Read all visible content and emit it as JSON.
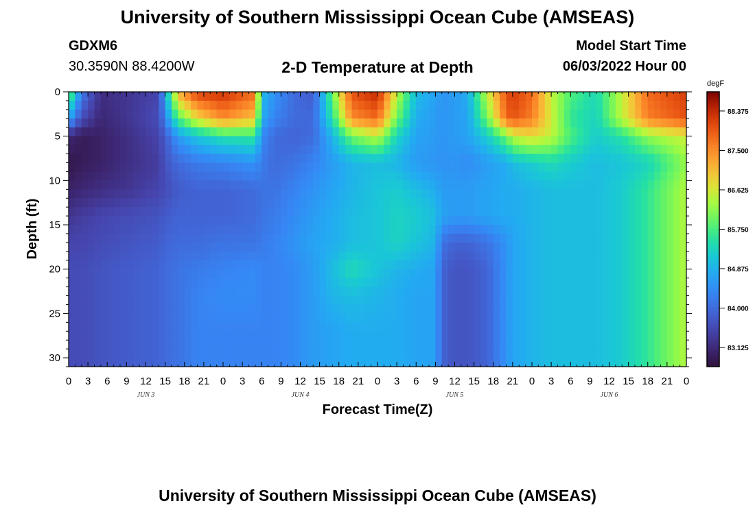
{
  "header": {
    "title": "University of Southern Mississippi Ocean Cube (AMSEAS)",
    "station": "GDXM6",
    "coords": "30.3590N  88.4200W",
    "subtitle": "2-D Temperature at Depth",
    "model_start_label": "Model Start Time",
    "model_start_value": "06/03/2022 Hour 00"
  },
  "footer": {
    "title": "University of Southern Mississippi Ocean Cube (AMSEAS)"
  },
  "chart_data": {
    "type": "heatmap",
    "title": "2-D Temperature at Depth",
    "xlabel": "Forecast Time(Z)",
    "ylabel": "Depth (ft)",
    "x_unit": "hours from model start",
    "x_range": [
      0,
      96
    ],
    "x_tick_labels": [
      "0",
      "3",
      "6",
      "9",
      "12",
      "15",
      "18",
      "21",
      "0",
      "3",
      "6",
      "9",
      "12",
      "15",
      "18",
      "21",
      "0",
      "3",
      "6",
      "9",
      "12",
      "15",
      "18",
      "21",
      "0",
      "3",
      "6",
      "9",
      "12",
      "15",
      "18",
      "21",
      "0"
    ],
    "day_labels": [
      {
        "label": "JUN 3",
        "hour": 12
      },
      {
        "label": "JUN 4",
        "hour": 36
      },
      {
        "label": "JUN 5",
        "hour": 60
      },
      {
        "label": "JUN 6",
        "hour": 84
      }
    ],
    "y_ticks": [
      0,
      5,
      10,
      15,
      20,
      25,
      30
    ],
    "y_range": [
      0,
      31
    ],
    "y_inverted": true,
    "colorbar": {
      "unit": "degF",
      "range": [
        82.7,
        88.8
      ],
      "ticks": [
        83.125,
        84.0,
        84.875,
        85.75,
        86.625,
        87.5,
        88.375
      ],
      "tick_labels": [
        "83.125",
        "84.000",
        "84.875",
        "85.750",
        "86.625",
        "87.500",
        "88.375"
      ]
    },
    "depths": [
      0,
      3,
      5,
      8,
      11,
      14,
      17,
      20,
      23,
      27,
      31
    ],
    "times": [
      0,
      2,
      5,
      9,
      14,
      15,
      17,
      20,
      24,
      29,
      30,
      32,
      35,
      38,
      41,
      44,
      48,
      51,
      54,
      57,
      58,
      60,
      62,
      65,
      68,
      69,
      72,
      75,
      78,
      82,
      86,
      90,
      96
    ],
    "temperature_degF": [
      [
        86.2,
        84.2,
        83.2,
        83.3,
        83.5,
        84.8,
        87.2,
        88.2,
        88.3,
        87.8,
        85.0,
        84.5,
        84.0,
        83.8,
        86.0,
        88.0,
        88.4,
        86.5,
        85.0,
        84.7,
        84.5,
        84.6,
        84.8,
        86.5,
        88.0,
        88.2,
        87.8,
        86.5,
        85.8,
        85.4,
        86.5,
        87.8,
        88.2
      ],
      [
        84.8,
        83.6,
        83.1,
        83.3,
        83.6,
        84.3,
        85.8,
        86.8,
        87.5,
        87.0,
        84.8,
        84.3,
        84.0,
        84.0,
        85.5,
        87.5,
        87.8,
        86.0,
        84.8,
        84.6,
        84.5,
        84.6,
        84.7,
        86.0,
        87.8,
        88.0,
        87.6,
        86.6,
        85.6,
        85.3,
        86.5,
        87.6,
        88.0
      ],
      [
        83.1,
        82.9,
        83.0,
        83.2,
        83.5,
        83.8,
        84.6,
        85.1,
        85.5,
        85.6,
        84.4,
        84.0,
        83.9,
        84.0,
        84.9,
        86.0,
        86.5,
        85.3,
        84.7,
        84.6,
        84.5,
        84.6,
        84.7,
        85.2,
        86.0,
        86.5,
        86.8,
        86.5,
        85.8,
        85.2,
        85.5,
        86.2,
        86.6
      ],
      [
        82.8,
        82.9,
        83.0,
        83.2,
        83.4,
        83.7,
        84.0,
        84.2,
        84.3,
        84.5,
        84.2,
        84.0,
        84.1,
        84.3,
        84.6,
        84.9,
        85.0,
        84.9,
        84.6,
        84.5,
        84.5,
        84.5,
        84.4,
        84.6,
        84.8,
        85.0,
        85.2,
        85.4,
        85.2,
        85.0,
        85.1,
        85.3,
        86.2
      ],
      [
        83.0,
        83.1,
        83.2,
        83.3,
        83.5,
        83.6,
        83.8,
        83.9,
        83.9,
        84.0,
        84.1,
        84.1,
        84.3,
        84.5,
        84.7,
        84.9,
        85.1,
        85.2,
        85.0,
        84.8,
        84.6,
        84.6,
        84.6,
        84.7,
        84.8,
        84.8,
        84.9,
        85.0,
        85.0,
        85.0,
        85.2,
        85.6,
        86.4
      ],
      [
        83.3,
        83.4,
        83.5,
        83.6,
        83.7,
        83.8,
        83.9,
        83.9,
        83.9,
        84.0,
        84.1,
        84.2,
        84.4,
        84.6,
        84.8,
        85.0,
        85.1,
        85.3,
        85.2,
        85.0,
        84.7,
        84.6,
        84.6,
        84.7,
        84.8,
        84.8,
        84.9,
        85.0,
        85.0,
        85.0,
        85.2,
        85.6,
        86.4
      ],
      [
        83.5,
        83.5,
        83.6,
        83.7,
        83.8,
        83.9,
        84.0,
        84.0,
        84.1,
        84.1,
        84.2,
        84.3,
        84.5,
        84.7,
        84.8,
        85.0,
        85.1,
        85.3,
        85.1,
        84.9,
        84.1,
        83.9,
        83.9,
        84.1,
        84.5,
        84.7,
        84.9,
        85.0,
        85.0,
        85.0,
        85.2,
        85.6,
        86.4
      ],
      [
        83.6,
        83.6,
        83.7,
        83.8,
        83.9,
        84.0,
        84.1,
        84.2,
        84.3,
        84.4,
        84.3,
        84.3,
        84.4,
        84.6,
        85.0,
        85.4,
        85.1,
        84.9,
        84.8,
        84.7,
        83.9,
        83.7,
        83.7,
        83.9,
        84.5,
        84.7,
        84.9,
        85.0,
        85.0,
        85.0,
        85.2,
        85.6,
        86.4
      ],
      [
        83.6,
        83.6,
        83.7,
        83.8,
        83.9,
        84.0,
        84.1,
        84.3,
        84.4,
        84.4,
        84.3,
        84.3,
        84.4,
        84.6,
        84.9,
        85.0,
        84.9,
        84.8,
        84.7,
        84.7,
        83.9,
        83.7,
        83.7,
        83.9,
        84.5,
        84.7,
        84.9,
        85.0,
        85.0,
        85.0,
        85.2,
        85.6,
        86.4
      ],
      [
        83.6,
        83.6,
        83.7,
        83.8,
        83.9,
        84.0,
        84.1,
        84.3,
        84.3,
        84.3,
        84.3,
        84.3,
        84.4,
        84.6,
        84.7,
        84.8,
        84.8,
        84.8,
        84.7,
        84.7,
        83.9,
        83.7,
        83.7,
        83.9,
        84.5,
        84.7,
        84.9,
        85.0,
        85.0,
        85.0,
        85.2,
        85.6,
        86.4
      ],
      [
        83.6,
        83.6,
        83.7,
        83.8,
        83.9,
        84.0,
        84.1,
        84.3,
        84.3,
        84.3,
        84.3,
        84.3,
        84.4,
        84.6,
        84.7,
        84.8,
        84.8,
        84.8,
        84.7,
        84.7,
        83.9,
        83.7,
        83.7,
        83.9,
        84.5,
        84.7,
        84.9,
        85.0,
        85.0,
        85.0,
        85.2,
        85.6,
        86.4
      ]
    ]
  }
}
